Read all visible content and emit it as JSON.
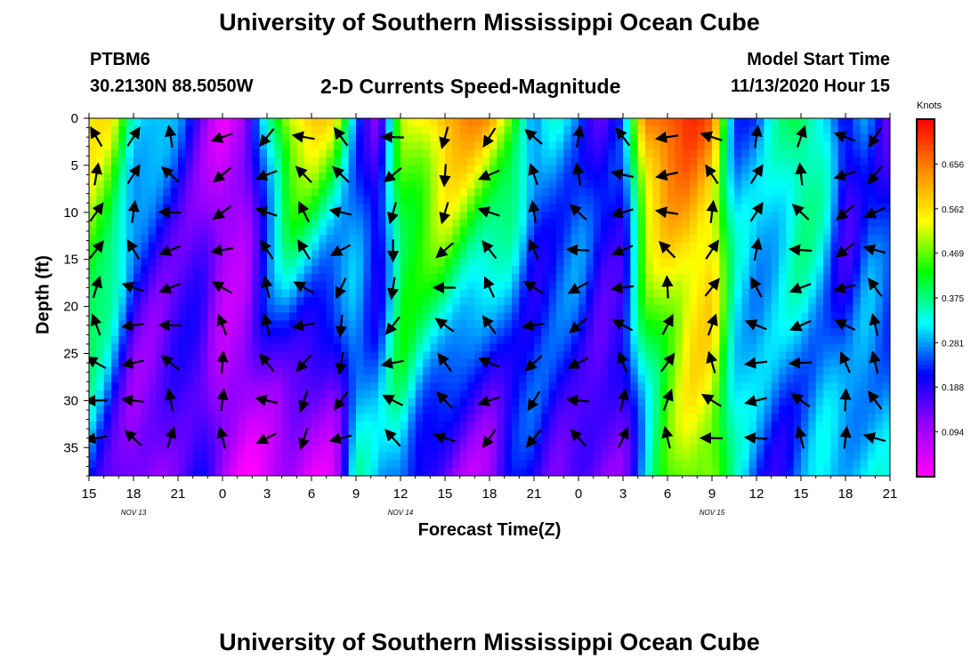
{
  "header": {
    "title": "University of Southern Mississippi Ocean Cube",
    "station": "PTBM6",
    "coordinates": "30.2130N 88.5050W",
    "subtitle": "2-D Currents Speed-Magnitude",
    "model_start_label": "Model Start Time",
    "model_start_value": "11/13/2020 Hour 15"
  },
  "footer": {
    "title": "University of Southern Mississippi Ocean Cube"
  },
  "chart_data": {
    "type": "heatmap",
    "title": "2-D Currents Speed-Magnitude",
    "xlabel": "Forecast Time(Z)",
    "ylabel": "Depth (ft)",
    "x_tick_labels": [
      "15",
      "18",
      "21",
      "0",
      "3",
      "6",
      "9",
      "12",
      "15",
      "18",
      "21",
      "0",
      "3",
      "6",
      "9",
      "12",
      "15",
      "18",
      "21"
    ],
    "date_labels": [
      {
        "label": "NOV 13",
        "tick_index": 1
      },
      {
        "label": "NOV 14",
        "tick_index": 7
      },
      {
        "label": "NOV 15",
        "tick_index": 14
      }
    ],
    "y_tick_labels": [
      "0",
      "5",
      "10",
      "15",
      "20",
      "25",
      "30",
      "35"
    ],
    "ylim": [
      0,
      38
    ],
    "y_inverted": true,
    "x_range_hours": [
      0,
      54
    ],
    "colorbar": {
      "unit": "Knots",
      "tick_labels": [
        "0.656",
        "0.562",
        "0.469",
        "0.375",
        "0.281",
        "0.188",
        "0.094"
      ],
      "range": [
        0,
        0.75
      ],
      "colors": [
        "#ff00ff",
        "#9900ff",
        "#0000ff",
        "#00ffff",
        "#00ff00",
        "#ffff00",
        "#ff8800",
        "#ff0000"
      ]
    },
    "grid": false,
    "speed_columns": {
      "hours": [
        0,
        1.5,
        3,
        4.5,
        6,
        7.5,
        9,
        10.5,
        12,
        13.5,
        15,
        16.5,
        18,
        19.5,
        21,
        22.5,
        24,
        25.5,
        27,
        28.5,
        30,
        31.5,
        33,
        34.5,
        36,
        37.5,
        39,
        40.5,
        42,
        43.5,
        45,
        46.5,
        48,
        49.5,
        51,
        52.5,
        54
      ],
      "surface": [
        0.55,
        0.5,
        0.32,
        0.3,
        0.26,
        0.18,
        0.08,
        0.1,
        0.32,
        0.52,
        0.56,
        0.52,
        0.3,
        0.16,
        0.5,
        0.55,
        0.62,
        0.6,
        0.58,
        0.5,
        0.3,
        0.35,
        0.3,
        0.16,
        0.18,
        0.62,
        0.7,
        0.72,
        0.68,
        0.3,
        0.26,
        0.32,
        0.38,
        0.32,
        0.16,
        0.3,
        0.2
      ],
      "bottom": [
        0.28,
        0.2,
        0.12,
        0.1,
        0.14,
        0.16,
        0.05,
        0.03,
        0.08,
        0.1,
        0.05,
        0.05,
        0.3,
        0.25,
        0.3,
        0.2,
        0.16,
        0.12,
        0.1,
        0.16,
        0.18,
        0.12,
        0.14,
        0.14,
        0.18,
        0.32,
        0.42,
        0.48,
        0.46,
        0.3,
        0.26,
        0.24,
        0.28,
        0.32,
        0.3,
        0.28,
        0.26
      ]
    },
    "vector_columns_hours": [
      0.5,
      3,
      5.5,
      9,
      12,
      14.5,
      17,
      20.5,
      24,
      27,
      30,
      33,
      36,
      39,
      42,
      45,
      48,
      51,
      53
    ],
    "vector_rows_depth": [
      2,
      6,
      10,
      14,
      18,
      22,
      26,
      30,
      34
    ]
  }
}
